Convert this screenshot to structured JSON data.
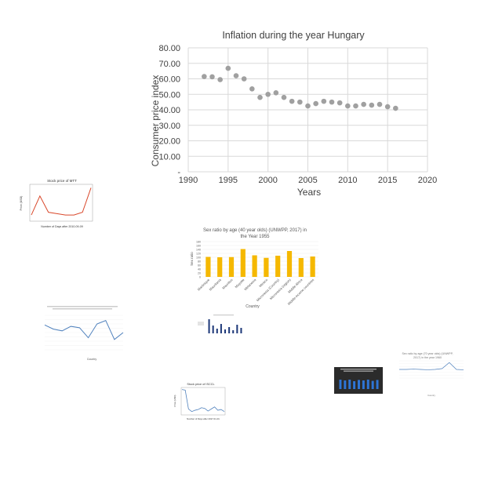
{
  "colors": {
    "main_point": "#a0a0a0",
    "stock_line": "#d9482b",
    "sex_bar": "#f5b800",
    "blue_line": "#4f81bd",
    "navy_bar": "#1f3a7a",
    "dark_bg": "#2b2b2b",
    "dark_bar": "#2e75d6",
    "grid": "#d9d9d9"
  },
  "chart_data": [
    {
      "type": "scatter",
      "title": "Inflation during the year Hungary",
      "xlabel": "Years",
      "ylabel": "Consumer price index",
      "xlim": [
        1990,
        2020
      ],
      "ylim": [
        0,
        80
      ],
      "xticks": [
        "1990",
        "1995",
        "2000",
        "2005",
        "2010",
        "2015",
        "2020"
      ],
      "yticks": [
        "-",
        "10.00",
        "20.00",
        "30.00",
        "40.00",
        "50.00",
        "60.00",
        "70.00",
        "80.00"
      ],
      "grid": true,
      "x": [
        1992,
        1993,
        1994,
        1995,
        1996,
        1997,
        1998,
        1999,
        2000,
        2001,
        2002,
        2003,
        2004,
        2005,
        2006,
        2007,
        2008,
        2009,
        2010,
        2011,
        2012,
        2013,
        2014,
        2015,
        2016
      ],
      "y": [
        61.5,
        61.3,
        59.5,
        66.8,
        62.0,
        60.0,
        53.5,
        48.0,
        50.0,
        51.0,
        48.0,
        45.5,
        45.0,
        42.5,
        44.0,
        45.5,
        45.0,
        44.5,
        42.5,
        42.5,
        43.5,
        43.0,
        43.5,
        42.0,
        41.0
      ]
    },
    {
      "type": "line",
      "title": "Stock price of MTT",
      "xlabel": "Number of Days after 2010-09-09",
      "ylabel": "Price (USD)",
      "x": [
        0,
        1,
        2,
        3,
        4,
        5,
        6,
        7
      ],
      "y": [
        14.2,
        14.9,
        14.3,
        14.25,
        14.2,
        14.2,
        14.3,
        15.2
      ],
      "ylim": [
        14.0,
        15.3
      ]
    },
    {
      "type": "bar",
      "title": "Sex ratio by age (40 year olds) (UNWPP, 2017) in the Year 1955",
      "xlabel": "Country",
      "ylabel": "Sex ratio",
      "ylim": [
        0,
        180
      ],
      "yticks": [
        "0",
        "20",
        "40",
        "60",
        "80",
        "100",
        "120",
        "140",
        "160",
        "180"
      ],
      "categories": [
        "Martinique",
        "Mauritania",
        "Mauritius",
        "Mayotte",
        "Melanesia",
        "Mexico",
        "Micronesia (Country)",
        "Micronesia (region)",
        "Middle Africa",
        "Middle-income countries"
      ],
      "values": [
        102,
        100,
        101,
        142,
        110,
        97,
        108,
        132,
        96,
        104
      ]
    },
    {
      "type": "line",
      "title": "",
      "xlabel": "Country",
      "ylabel": "",
      "values": [
        0.72,
        0.6,
        0.55,
        0.68,
        0.64,
        0.35,
        0.75,
        0.85,
        0.3,
        0.5
      ]
    },
    {
      "type": "bar",
      "title": "",
      "values": [
        0.9,
        0.5,
        0.3,
        0.6,
        0.25,
        0.4,
        0.2,
        0.55,
        0.35
      ]
    },
    {
      "type": "line",
      "title": "Sex ratio by age (70 year olds) (UNWPP, 2017) in the year 1960",
      "xlabel": "Country",
      "values": [
        0.5,
        0.5,
        0.52,
        0.5,
        0.48,
        0.5,
        0.55,
        0.9,
        0.5,
        0.48
      ]
    },
    {
      "type": "bar",
      "title": "",
      "values": [
        0.6,
        0.55,
        0.6,
        0.5,
        0.58,
        0.55,
        0.6,
        0.52,
        0.58
      ]
    },
    {
      "type": "line",
      "title": "Stock price of ISCCL",
      "xlabel": "Number of Days after 2017-01-01",
      "ylabel": "Price (USD)",
      "values": [
        0.95,
        0.93,
        0.2,
        0.1,
        0.15,
        0.18,
        0.25,
        0.22,
        0.12,
        0.2,
        0.28,
        0.15,
        0.18,
        0.1
      ]
    }
  ]
}
